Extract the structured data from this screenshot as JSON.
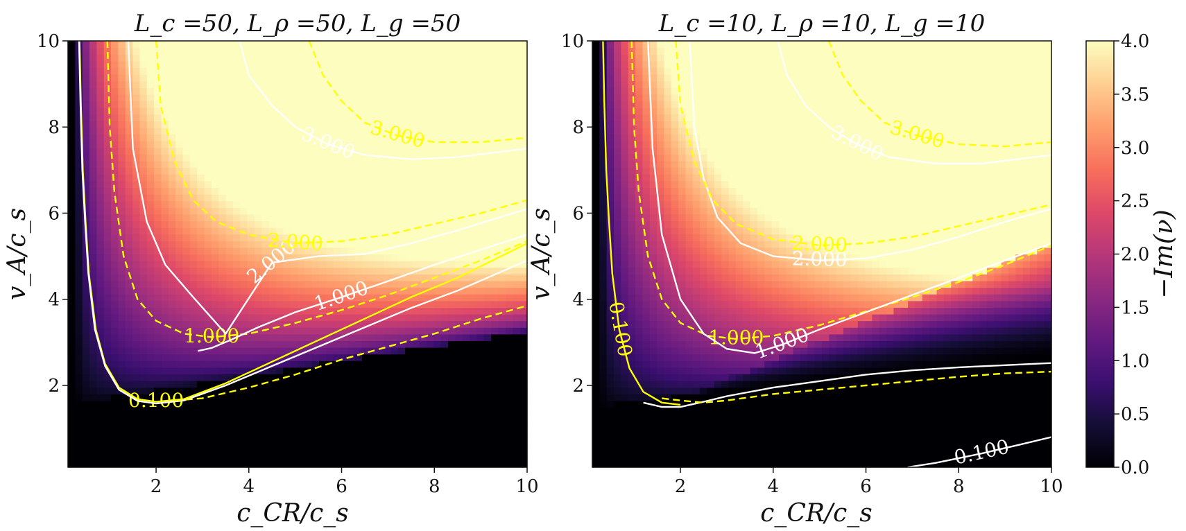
{
  "chart_data": [
    {
      "type": "heatmap",
      "title": "L_c =50, L_ρ =50, L_g =50",
      "xlabel": "c_CR/c_s",
      "ylabel": "v_A/c_s",
      "xlim": [
        0.1,
        10
      ],
      "ylim": [
        0.1,
        10
      ],
      "xticks": [
        "2",
        "4",
        "6",
        "8",
        "10"
      ],
      "yticks": [
        "2",
        "4",
        "6",
        "8",
        "10"
      ],
      "colormap": "magma",
      "grid": false,
      "contours": [
        {
          "level": 0.1,
          "color": "#ffff00",
          "style": "solid",
          "label": "0.100",
          "x": [
            0.35,
            0.38,
            0.42,
            0.48,
            0.55,
            0.7,
            0.9,
            1.2,
            1.6,
            2.0,
            2.6,
            3.5,
            4.5,
            5.5,
            6.5,
            7.5,
            8.5,
            10.0
          ],
          "y": [
            10.0,
            8.5,
            7.0,
            5.8,
            4.6,
            3.3,
            2.5,
            1.95,
            1.68,
            1.62,
            1.68,
            2.05,
            2.55,
            3.05,
            3.55,
            4.05,
            4.5,
            5.3
          ]
        },
        {
          "level": 0.1,
          "color": "#ffffff",
          "style": "solid",
          "label": "",
          "x": [
            0.34,
            0.37,
            0.41,
            0.47,
            0.54,
            0.68,
            0.9,
            1.2,
            1.6,
            2.0,
            2.6,
            3.5,
            4.5,
            5.5,
            6.5,
            7.5,
            8.5,
            10.0
          ],
          "y": [
            10.0,
            8.5,
            7.0,
            5.8,
            4.6,
            3.3,
            2.45,
            1.9,
            1.64,
            1.58,
            1.65,
            2.0,
            2.45,
            2.9,
            3.35,
            3.8,
            4.2,
            4.9
          ]
        },
        {
          "level": 1.0,
          "color": "#ffff00",
          "style": "dashed",
          "label": "1.000",
          "x": [
            0.95,
            1.0,
            1.1,
            1.3,
            1.6,
            2.0,
            2.6,
            3.2,
            4.0,
            5.0,
            6.0,
            7.0,
            8.0,
            9.0,
            10.0
          ],
          "y": [
            10.0,
            8.0,
            6.5,
            5.0,
            4.0,
            3.5,
            3.2,
            3.12,
            3.2,
            3.45,
            3.75,
            4.1,
            4.5,
            4.9,
            5.35
          ]
        },
        {
          "level": 1.0,
          "color": "#ffffff",
          "style": "solid",
          "label": "1.000",
          "x": [
            2.9,
            3.2,
            3.6,
            4.2,
            5.0,
            6.0,
            7.0,
            8.0,
            9.0,
            10.0
          ],
          "y": [
            2.8,
            2.87,
            3.05,
            3.35,
            3.7,
            4.05,
            4.42,
            4.8,
            5.15,
            5.5
          ]
        },
        {
          "level": 1.0,
          "color": "#ffff00",
          "style": "dashed",
          "label": "",
          "x": [
            2.4,
            3.0,
            4.0,
            5.0,
            6.0,
            7.0,
            8.0,
            9.0,
            10.0
          ],
          "y": [
            1.65,
            1.7,
            1.95,
            2.25,
            2.6,
            2.9,
            3.2,
            3.55,
            3.85
          ]
        },
        {
          "level": 2.0,
          "color": "#ffffff",
          "style": "solid",
          "label": "2.000",
          "x": [
            1.4,
            1.5,
            1.8,
            2.2,
            2.8,
            3.5,
            4.5,
            5.5,
            6.5,
            7.5,
            8.5,
            10.0
          ],
          "y": [
            10.0,
            7.5,
            5.8,
            4.8,
            4.05,
            3.2,
            4.85,
            5.0,
            5.05,
            5.3,
            5.6,
            6.1
          ]
        },
        {
          "level": 2.0,
          "color": "#ffff00",
          "style": "dashed",
          "label": "2.000",
          "x": [
            2.0,
            2.1,
            2.4,
            2.8,
            3.3,
            4.0,
            5.0,
            6.0,
            7.0,
            8.0,
            9.0,
            10.0
          ],
          "y": [
            10.0,
            8.5,
            7.2,
            6.3,
            5.8,
            5.5,
            5.3,
            5.35,
            5.5,
            5.75,
            6.0,
            6.3
          ]
        },
        {
          "level": 3.0,
          "color": "#ffffff",
          "style": "solid",
          "label": "3.000",
          "x": [
            3.8,
            4.0,
            4.5,
            5.0,
            5.7,
            6.5,
            7.5,
            8.5,
            10.0
          ],
          "y": [
            10.0,
            9.2,
            8.5,
            8.0,
            7.6,
            7.35,
            7.25,
            7.3,
            7.5
          ]
        },
        {
          "level": 3.0,
          "color": "#ffff00",
          "style": "dashed",
          "label": "3.000",
          "x": [
            5.3,
            5.6,
            6.0,
            6.5,
            7.2,
            8.0,
            9.0,
            10.0
          ],
          "y": [
            10.0,
            9.2,
            8.6,
            8.1,
            7.8,
            7.65,
            7.65,
            7.75
          ]
        }
      ]
    },
    {
      "type": "heatmap",
      "title": "L_c =10, L_ρ =10, L_g =10",
      "xlabel": "c_CR/c_s",
      "ylabel": "v_A/c_s",
      "xlim": [
        0.1,
        10
      ],
      "ylim": [
        0.1,
        10
      ],
      "xticks": [
        "2",
        "4",
        "6",
        "8",
        "10"
      ],
      "yticks": [
        "2",
        "4",
        "6",
        "8",
        "10"
      ],
      "colormap": "magma",
      "grid": false,
      "contours": [
        {
          "level": 0.1,
          "color": "#ffff00",
          "style": "solid",
          "label": "0.100",
          "x": [
            0.33,
            0.36,
            0.4,
            0.46,
            0.53,
            0.68,
            0.9,
            1.2,
            1.6,
            2.0
          ],
          "y": [
            10.0,
            8.5,
            7.0,
            5.8,
            4.6,
            3.3,
            2.4,
            1.85,
            1.6,
            1.55
          ]
        },
        {
          "level": 0.1,
          "color": "#ffffff",
          "style": "solid",
          "label": "0.100",
          "x": [
            6.9,
            7.5,
            8.5,
            9.3,
            10.0
          ],
          "y": [
            0.1,
            0.2,
            0.42,
            0.62,
            0.8
          ]
        },
        {
          "level": 0.1,
          "color": "#ffffff",
          "style": "solid",
          "label": "",
          "x": [
            1.2,
            1.6,
            2.0,
            2.5,
            3.0,
            4.0,
            5.0,
            6.0,
            7.0,
            8.0,
            9.0,
            10.0
          ],
          "y": [
            1.6,
            1.5,
            1.5,
            1.62,
            1.75,
            1.95,
            2.1,
            2.25,
            2.35,
            2.42,
            2.47,
            2.52
          ]
        },
        {
          "level": 0.1,
          "color": "#ffff00",
          "style": "dashed",
          "label": "",
          "x": [
            1.6,
            2.0,
            2.5,
            3.0,
            4.0,
            5.0,
            6.0,
            7.0,
            8.0,
            9.0,
            10.0
          ],
          "y": [
            1.7,
            1.65,
            1.6,
            1.65,
            1.8,
            1.9,
            2.0,
            2.1,
            2.2,
            2.28,
            2.32
          ]
        },
        {
          "level": 1.0,
          "color": "#ffff00",
          "style": "dashed",
          "label": "1.000",
          "x": [
            0.95,
            1.0,
            1.1,
            1.3,
            1.6,
            2.0,
            2.6,
            3.2,
            4.0,
            5.0,
            6.0,
            7.0,
            8.0,
            9.0,
            10.0
          ],
          "y": [
            10.0,
            8.0,
            6.5,
            5.0,
            4.0,
            3.45,
            3.15,
            3.08,
            3.15,
            3.4,
            3.72,
            4.05,
            4.4,
            4.8,
            5.25
          ]
        },
        {
          "level": 1.0,
          "color": "#ffffff",
          "style": "solid",
          "label": "1.000",
          "x": [
            1.3,
            1.4,
            1.6,
            2.0,
            2.5,
            3.0,
            3.6,
            4.2,
            5.0,
            6.0,
            7.0,
            8.0,
            9.0,
            10.0
          ],
          "y": [
            10.0,
            7.5,
            5.5,
            4.0,
            3.2,
            2.85,
            2.75,
            2.95,
            3.3,
            3.7,
            4.1,
            4.5,
            4.9,
            5.3
          ]
        },
        {
          "level": 2.0,
          "color": "#ffffff",
          "style": "solid",
          "label": "2.000",
          "x": [
            2.2,
            2.3,
            2.5,
            2.8,
            3.3,
            4.0,
            5.0,
            6.0,
            7.0,
            8.0,
            9.0,
            10.0
          ],
          "y": [
            10.0,
            8.0,
            6.8,
            5.9,
            5.3,
            5.0,
            4.9,
            4.95,
            5.15,
            5.45,
            5.8,
            6.1
          ]
        },
        {
          "level": 2.0,
          "color": "#ffff00",
          "style": "dashed",
          "label": "2.000",
          "x": [
            1.9,
            2.0,
            2.3,
            2.7,
            3.2,
            4.0,
            5.0,
            6.0,
            7.0,
            8.0,
            9.0,
            10.0
          ],
          "y": [
            10.0,
            8.5,
            7.2,
            6.3,
            5.75,
            5.4,
            5.25,
            5.3,
            5.45,
            5.7,
            5.95,
            6.2
          ]
        },
        {
          "level": 3.0,
          "color": "#ffffff",
          "style": "solid",
          "label": "3.000",
          "x": [
            4.1,
            4.3,
            4.7,
            5.2,
            5.8,
            6.5,
            7.5,
            8.5,
            10.0
          ],
          "y": [
            10.0,
            9.2,
            8.5,
            8.0,
            7.6,
            7.3,
            7.15,
            7.15,
            7.35
          ]
        },
        {
          "level": 3.0,
          "color": "#ffff00",
          "style": "dashed",
          "label": "3.000",
          "x": [
            5.2,
            5.5,
            5.9,
            6.4,
            7.1,
            8.0,
            9.0,
            10.0
          ],
          "y": [
            10.0,
            9.2,
            8.6,
            8.1,
            7.8,
            7.6,
            7.55,
            7.65
          ]
        }
      ]
    }
  ],
  "colorbar": {
    "label": "−Im(ν)",
    "range": [
      0.0,
      4.0
    ],
    "ticks": [
      "0.0",
      "0.5",
      "1.0",
      "1.5",
      "2.0",
      "2.5",
      "3.0",
      "3.5",
      "4.0"
    ]
  }
}
